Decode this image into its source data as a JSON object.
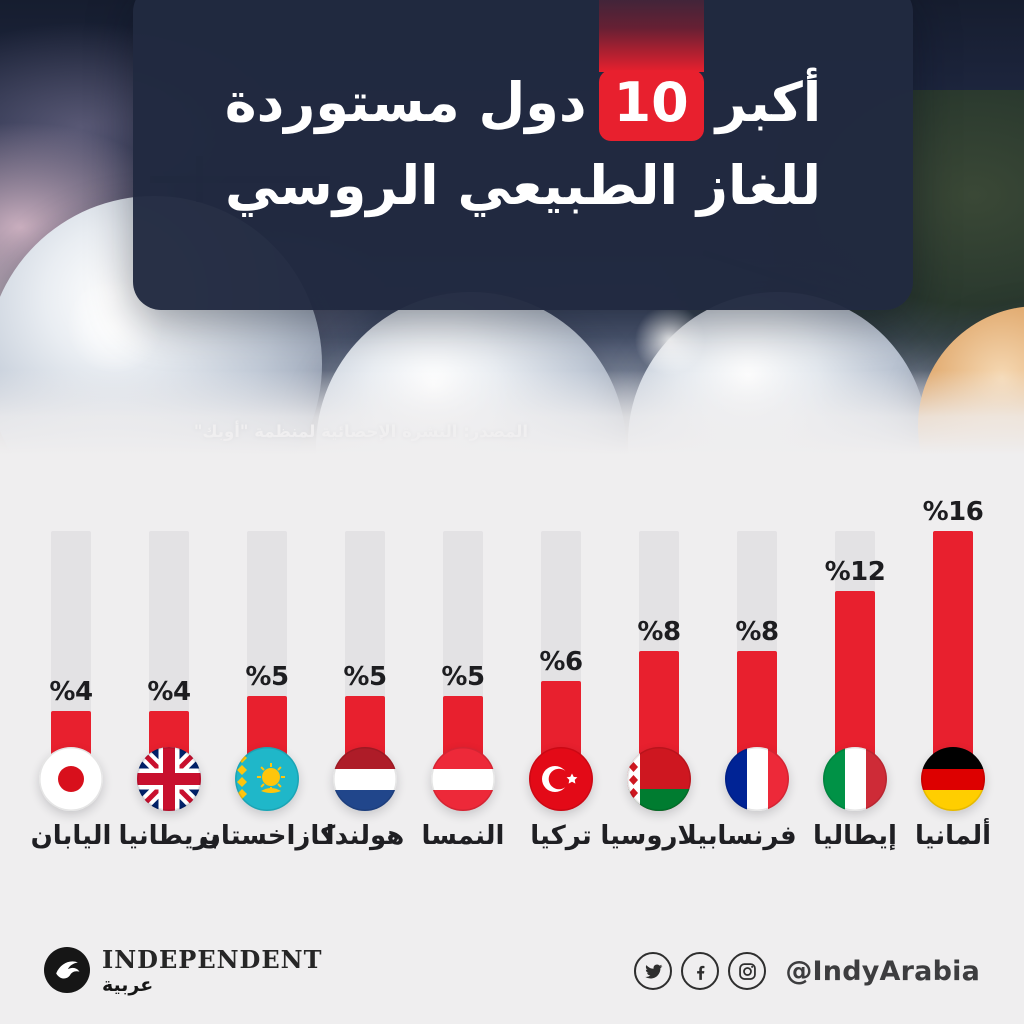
{
  "title": {
    "line1_pre": "أكبر",
    "line1_num": "10",
    "line1_post": "دول مستوردة",
    "line2": "للغاز الطبيعي الروسي"
  },
  "source": "المصدر: النشرة الإحصائية لمنظمة \"أوبك\"",
  "chart_data": {
    "type": "bar",
    "title": "أكبر 10 دول مستوردة للغاز الطبيعي الروسي",
    "orientation": "vertical",
    "unit": "%",
    "value_label_prefix": "%",
    "categories": [
      "اليابان",
      "بريطانيا",
      "كازاخستان",
      "هولندا",
      "النمسا",
      "تركيا",
      "بيلاروسيا",
      "فرنسا",
      "إيطاليا",
      "ألمانيا"
    ],
    "values": [
      4,
      4,
      5,
      5,
      5,
      6,
      8,
      8,
      12,
      16
    ],
    "flags": [
      "japan-flag",
      "uk-flag",
      "kazakhstan-flag",
      "netherlands-flag",
      "austria-flag",
      "turkey-flag",
      "belarus-flag",
      "france-flag",
      "italy-flag",
      "germany-flag"
    ],
    "ylim": [
      0,
      16
    ],
    "grid": false,
    "legend": false,
    "bar_color": "#e8202e",
    "track_color": "#e3e2e4"
  },
  "footer": {
    "brand": "INDEPENDENT",
    "brand_ar": "عربية",
    "brand_icon": "eagle-icon",
    "social_icons": [
      "twitter-icon",
      "facebook-icon",
      "instagram-icon"
    ],
    "handle": "@IndyArabia"
  },
  "colors": {
    "accent_red": "#e8202e",
    "panel_navy": "#212940",
    "page_bg": "#efeeef",
    "track_gray": "#e3e2e4",
    "text_dark": "#1f1f23"
  }
}
